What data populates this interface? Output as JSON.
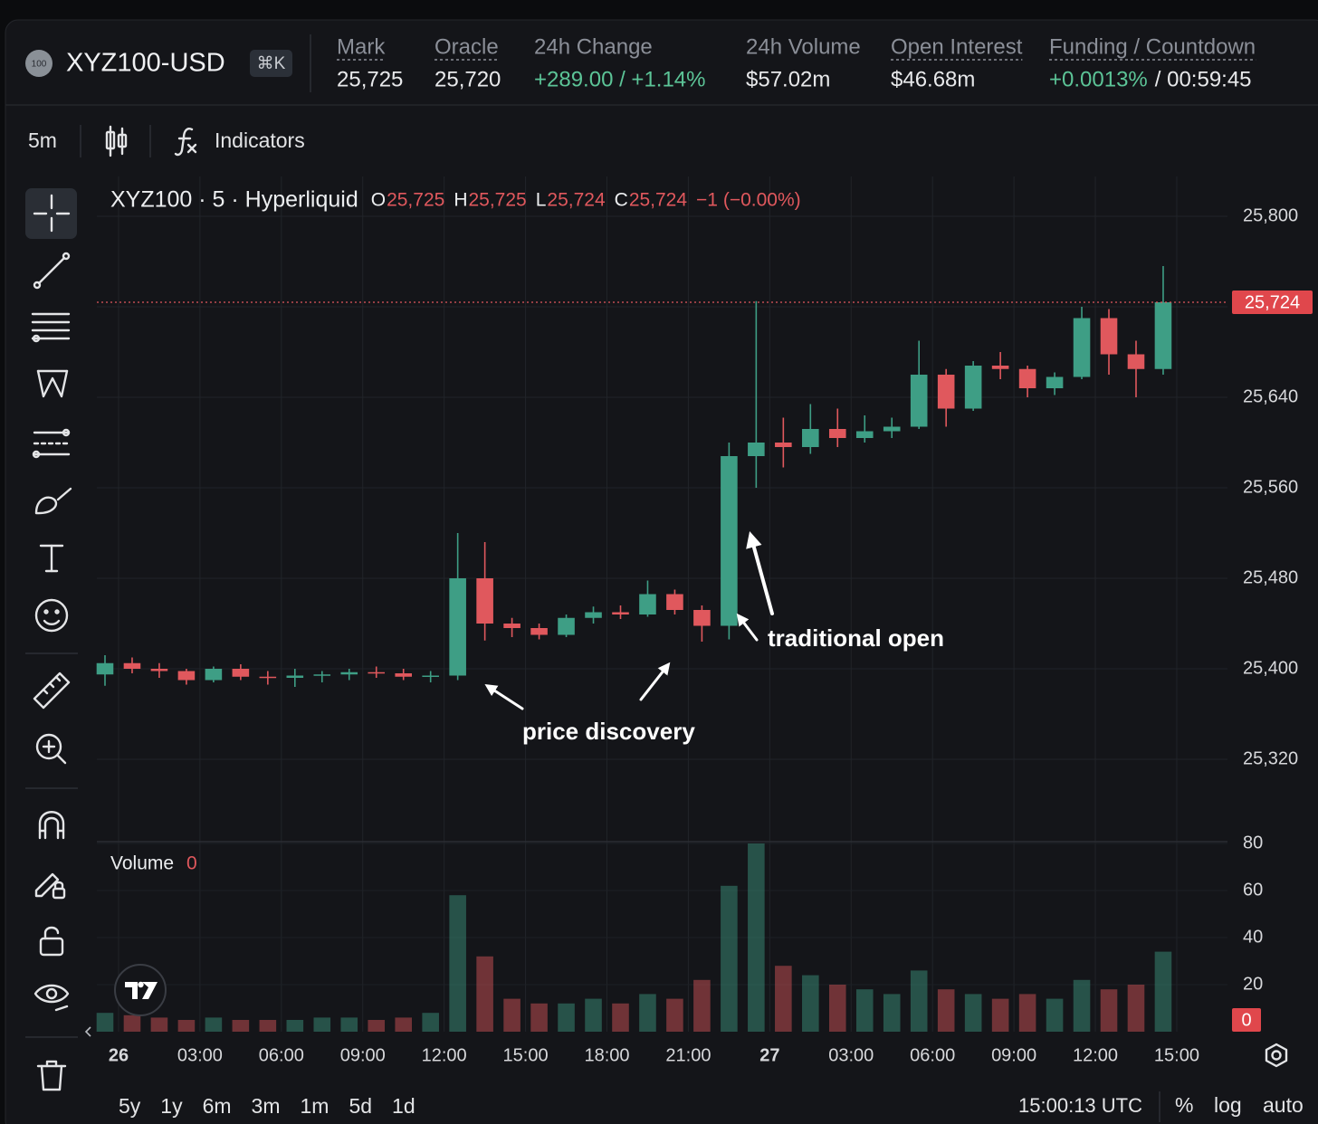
{
  "header": {
    "icon_text": "100",
    "symbol": "XYZ100-USD",
    "shortcut": "⌘K",
    "stats": [
      {
        "label": "Mark",
        "underline": true,
        "parts": [
          {
            "text": "25,725",
            "color": "#e8e9eb"
          }
        ]
      },
      {
        "label": "Oracle",
        "underline": true,
        "parts": [
          {
            "text": "25,720",
            "color": "#e8e9eb"
          }
        ]
      },
      {
        "label": "24h Change",
        "underline": false,
        "parts": [
          {
            "text": "+289.00 / +1.14%",
            "color": "#5cc497"
          }
        ]
      },
      {
        "label": "24h Volume",
        "underline": false,
        "parts": [
          {
            "text": "$57.02m",
            "color": "#e8e9eb"
          }
        ]
      },
      {
        "label": "Open Interest",
        "underline": true,
        "parts": [
          {
            "text": "$46.68m",
            "color": "#e8e9eb"
          }
        ]
      },
      {
        "label": "Funding / Countdown",
        "underline": true,
        "parts": [
          {
            "text": "+0.0013%",
            "color": "#5cc497"
          },
          {
            "text": "/ 00:59:45",
            "color": "#e8e9eb"
          }
        ]
      }
    ]
  },
  "toolbar": {
    "interval": "5m",
    "indicators": "Indicators"
  },
  "chart_data": {
    "type": "candlestick",
    "legend": {
      "symbol": "XYZ100 · 5 · Hyperliquid",
      "o_label": "O",
      "o": "25,725",
      "h_label": "H",
      "h": "25,725",
      "l_label": "L",
      "l": "25,724",
      "c_label": "C",
      "c": "25,724",
      "change": "−1 (−0.00%)"
    },
    "x": [
      -0.5,
      0.5,
      1.5,
      2.5,
      3.5,
      4.5,
      5.5,
      6.5,
      7.5,
      8.5,
      9.5,
      10.5,
      11.5,
      12.5,
      13.5,
      14.5,
      15.5,
      16.5,
      17.5,
      18.5,
      19.5,
      20.5,
      21.5,
      22.5,
      23.5,
      24.5,
      25.5,
      26.5,
      27.5,
      28.5,
      29.5,
      30.5,
      31.5,
      32.5,
      33.5,
      34.5,
      35.5,
      36.5,
      37.5,
      38.5
    ],
    "open": [
      25395,
      25405,
      25400,
      25398,
      25390,
      25400,
      25393,
      25392,
      25394,
      25395,
      25397,
      25396,
      25393,
      25394,
      25480,
      25440,
      25436,
      25430,
      25445,
      25450,
      25448,
      25466,
      25452,
      25438,
      25588,
      25600,
      25596,
      25612,
      25604,
      25610,
      25614,
      25660,
      25630,
      25668,
      25665,
      25648,
      25658,
      25710,
      25678,
      25665
    ],
    "high": [
      25412,
      25410,
      25405,
      25400,
      25402,
      25404,
      25398,
      25400,
      25398,
      25400,
      25402,
      25400,
      25398,
      25520,
      25512,
      25445,
      25440,
      25448,
      25455,
      25456,
      25478,
      25470,
      25456,
      25600,
      25725,
      25622,
      25634,
      25630,
      25624,
      25622,
      25690,
      25665,
      25672,
      25680,
      25668,
      25662,
      25720,
      25718,
      25690,
      25756
    ],
    "low": [
      25385,
      25396,
      25392,
      25386,
      25388,
      25390,
      25386,
      25384,
      25388,
      25390,
      25392,
      25390,
      25388,
      25390,
      25425,
      25428,
      25426,
      25428,
      25440,
      25444,
      25446,
      25448,
      25424,
      25426,
      25560,
      25578,
      25590,
      25596,
      25600,
      25604,
      25612,
      25614,
      25628,
      25656,
      25640,
      25642,
      25656,
      25660,
      25640,
      25660
    ],
    "close": [
      25405,
      25400,
      25398,
      25390,
      25400,
      25393,
      25392,
      25394,
      25395,
      25397,
      25396,
      25393,
      25394,
      25480,
      25440,
      25436,
      25430,
      25445,
      25450,
      25448,
      25466,
      25452,
      25438,
      25588,
      25600,
      25596,
      25612,
      25604,
      25610,
      25614,
      25660,
      25630,
      25668,
      25665,
      25648,
      25658,
      25710,
      25678,
      25665,
      25724
    ],
    "volume": [
      8,
      7,
      6,
      5,
      6,
      5,
      5,
      5,
      6,
      6,
      5,
      6,
      8,
      58,
      32,
      14,
      12,
      12,
      14,
      12,
      16,
      14,
      22,
      62,
      80,
      28,
      24,
      20,
      18,
      16,
      26,
      18,
      16,
      14,
      16,
      14,
      22,
      18,
      20,
      34
    ],
    "up_color": "#3e9e85",
    "down_color": "#e0585d",
    "grid": true,
    "xlim": [
      -0.8,
      40.87
    ],
    "xticks": [
      {
        "value": 0,
        "label": "26"
      },
      {
        "value": 3,
        "label": "03:00"
      },
      {
        "value": 6,
        "label": "06:00"
      },
      {
        "value": 9,
        "label": "09:00"
      },
      {
        "value": 12,
        "label": "12:00"
      },
      {
        "value": 15,
        "label": "15:00"
      },
      {
        "value": 18,
        "label": "18:00"
      },
      {
        "value": 21,
        "label": "21:00"
      },
      {
        "value": 24,
        "label": "27"
      },
      {
        "value": 27,
        "label": "03:00"
      },
      {
        "value": 30,
        "label": "06:00"
      },
      {
        "value": 33,
        "label": "09:00"
      },
      {
        "value": 36,
        "label": "12:00"
      },
      {
        "value": 39,
        "label": "15:00"
      }
    ],
    "ylim": [
      25247.2,
      25835.2
    ],
    "yticks": [
      {
        "value": 25320,
        "label": "25,320"
      },
      {
        "value": 25400,
        "label": "25,400"
      },
      {
        "value": 25480,
        "label": "25,480"
      },
      {
        "value": 25560,
        "label": "25,560"
      },
      {
        "value": 25640,
        "label": "25,640"
      },
      {
        "value": 25720,
        "label": "25,720"
      },
      {
        "value": 25800,
        "label": "25,800"
      }
    ],
    "price_line": {
      "value": 25724,
      "label": "25,724"
    },
    "volume_pane": {
      "title": "Volume",
      "current": 0,
      "ylim": [
        0,
        80
      ],
      "yticks": [
        20,
        40,
        60,
        80
      ]
    },
    "annotations": [
      "traditional open",
      "price discovery"
    ]
  },
  "footer": {
    "ranges": [
      "5y",
      "1y",
      "6m",
      "3m",
      "1m",
      "5d",
      "1d"
    ],
    "clock": "15:00:13 UTC",
    "percent": "%",
    "log": "log",
    "auto": "auto"
  }
}
